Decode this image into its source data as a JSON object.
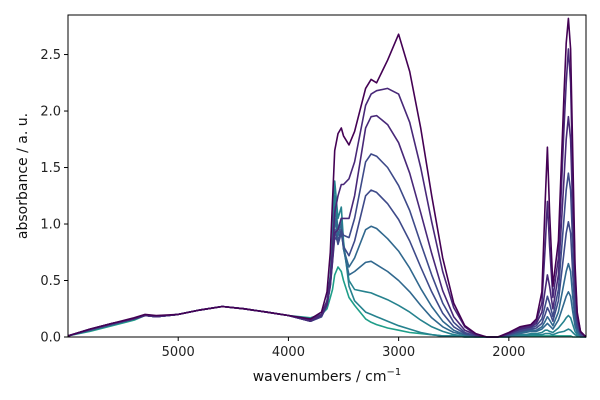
{
  "chart_data": {
    "type": "line",
    "title": "",
    "xlabel": "wavenumbers / cm",
    "xlabel_superscript": "−1",
    "ylabel": "absorbance / a. u.",
    "x_reversed": true,
    "xlim": [
      6000,
      1300
    ],
    "ylim": [
      0.0,
      2.85
    ],
    "xticks": [
      "5000",
      "4000",
      "3000",
      "2000"
    ],
    "yticks": [
      "0.0",
      "0.5",
      "1.0",
      "1.5",
      "2.0",
      "2.5"
    ],
    "grid": false,
    "legend": "none",
    "colormap": [
      "#440154",
      "#482878",
      "#3e4a89",
      "#31688e",
      "#26828e",
      "#1f9e89"
    ],
    "x": [
      6000,
      5800,
      5600,
      5400,
      5300,
      5200,
      5000,
      4800,
      4600,
      4400,
      4200,
      4000,
      3800,
      3700,
      3650,
      3620,
      3600,
      3580,
      3550,
      3520,
      3500,
      3450,
      3400,
      3300,
      3250,
      3200,
      3100,
      3000,
      2900,
      2800,
      2700,
      2600,
      2500,
      2400,
      2300,
      2200,
      2100,
      2000,
      1900,
      1850,
      1800,
      1750,
      1700,
      1670,
      1650,
      1630,
      1600,
      1550,
      1500,
      1480,
      1460,
      1440,
      1420,
      1400,
      1380,
      1350,
      1300
    ],
    "series": [
      {
        "values": [
          0.01,
          0.05,
          0.1,
          0.15,
          0.19,
          0.18,
          0.2,
          0.24,
          0.27,
          0.25,
          0.22,
          0.19,
          0.17,
          0.2,
          0.25,
          0.35,
          0.42,
          0.55,
          0.62,
          0.58,
          0.5,
          0.35,
          0.28,
          0.16,
          0.13,
          0.11,
          0.08,
          0.06,
          0.04,
          0.03,
          0.02,
          0.01,
          0.01,
          0.0,
          0.0,
          0.0,
          0.0,
          0.0,
          0.01,
          0.01,
          0.01,
          0.01,
          0.01,
          0.01,
          0.01,
          0.01,
          0.01,
          0.01,
          0.01,
          0.01,
          0.01,
          0.01,
          0.0,
          0.0,
          0.0,
          0.0,
          0.0
        ]
      },
      {
        "values": [
          0.01,
          0.06,
          0.11,
          0.16,
          0.19,
          0.18,
          0.2,
          0.24,
          0.27,
          0.25,
          0.22,
          0.19,
          0.16,
          0.2,
          0.32,
          0.55,
          0.9,
          1.38,
          1.05,
          1.15,
          0.85,
          0.45,
          0.32,
          0.22,
          0.2,
          0.18,
          0.14,
          0.1,
          0.07,
          0.04,
          0.02,
          0.01,
          0.01,
          0.0,
          0.0,
          0.0,
          0.0,
          0.0,
          0.01,
          0.01,
          0.02,
          0.02,
          0.02,
          0.03,
          0.03,
          0.03,
          0.02,
          0.04,
          0.05,
          0.06,
          0.07,
          0.06,
          0.04,
          0.02,
          0.01,
          0.0,
          0.0
        ]
      },
      {
        "values": [
          0.01,
          0.06,
          0.11,
          0.16,
          0.19,
          0.18,
          0.2,
          0.24,
          0.27,
          0.25,
          0.22,
          0.19,
          0.15,
          0.19,
          0.31,
          0.52,
          0.8,
          1.25,
          0.95,
          1.05,
          0.8,
          0.5,
          0.42,
          0.4,
          0.39,
          0.37,
          0.33,
          0.28,
          0.22,
          0.15,
          0.09,
          0.05,
          0.02,
          0.01,
          0.0,
          0.0,
          0.0,
          0.01,
          0.02,
          0.02,
          0.03,
          0.03,
          0.04,
          0.06,
          0.06,
          0.05,
          0.04,
          0.08,
          0.14,
          0.17,
          0.19,
          0.17,
          0.11,
          0.05,
          0.02,
          0.01,
          0.0
        ]
      },
      {
        "values": [
          0.01,
          0.06,
          0.11,
          0.16,
          0.19,
          0.18,
          0.2,
          0.24,
          0.27,
          0.25,
          0.22,
          0.19,
          0.15,
          0.18,
          0.3,
          0.5,
          0.75,
          1.15,
          0.9,
          1.0,
          0.78,
          0.55,
          0.58,
          0.66,
          0.67,
          0.64,
          0.58,
          0.5,
          0.4,
          0.28,
          0.17,
          0.09,
          0.04,
          0.02,
          0.01,
          0.0,
          0.0,
          0.01,
          0.03,
          0.04,
          0.05,
          0.05,
          0.07,
          0.1,
          0.12,
          0.1,
          0.07,
          0.15,
          0.3,
          0.36,
          0.4,
          0.36,
          0.22,
          0.1,
          0.04,
          0.01,
          0.0
        ]
      },
      {
        "values": [
          0.01,
          0.06,
          0.11,
          0.16,
          0.19,
          0.18,
          0.2,
          0.24,
          0.27,
          0.25,
          0.22,
          0.19,
          0.14,
          0.18,
          0.29,
          0.48,
          0.7,
          1.05,
          0.85,
          0.95,
          0.78,
          0.62,
          0.7,
          0.95,
          0.98,
          0.96,
          0.87,
          0.76,
          0.61,
          0.43,
          0.27,
          0.14,
          0.06,
          0.02,
          0.01,
          0.0,
          0.0,
          0.02,
          0.04,
          0.05,
          0.06,
          0.06,
          0.09,
          0.14,
          0.18,
          0.15,
          0.1,
          0.22,
          0.48,
          0.58,
          0.65,
          0.58,
          0.35,
          0.15,
          0.06,
          0.02,
          0.0
        ]
      },
      {
        "values": [
          0.01,
          0.06,
          0.11,
          0.16,
          0.19,
          0.18,
          0.2,
          0.24,
          0.27,
          0.25,
          0.22,
          0.19,
          0.14,
          0.18,
          0.28,
          0.46,
          0.68,
          0.95,
          0.82,
          0.92,
          0.8,
          0.72,
          0.85,
          1.25,
          1.3,
          1.28,
          1.18,
          1.04,
          0.85,
          0.62,
          0.4,
          0.21,
          0.09,
          0.03,
          0.01,
          0.0,
          0.0,
          0.02,
          0.05,
          0.06,
          0.07,
          0.08,
          0.12,
          0.2,
          0.26,
          0.22,
          0.14,
          0.32,
          0.75,
          0.92,
          1.02,
          0.92,
          0.55,
          0.23,
          0.09,
          0.02,
          0.0
        ]
      },
      {
        "values": [
          0.01,
          0.07,
          0.12,
          0.16,
          0.19,
          0.18,
          0.2,
          0.24,
          0.27,
          0.25,
          0.22,
          0.19,
          0.14,
          0.18,
          0.28,
          0.45,
          0.66,
          0.88,
          0.85,
          0.95,
          0.9,
          0.88,
          1.05,
          1.55,
          1.62,
          1.6,
          1.5,
          1.34,
          1.12,
          0.83,
          0.55,
          0.3,
          0.13,
          0.04,
          0.01,
          0.0,
          0.0,
          0.02,
          0.06,
          0.07,
          0.08,
          0.1,
          0.16,
          0.28,
          0.36,
          0.3,
          0.18,
          0.42,
          1.05,
          1.3,
          1.45,
          1.3,
          0.8,
          0.33,
          0.12,
          0.03,
          0.0
        ]
      },
      {
        "values": [
          0.01,
          0.07,
          0.12,
          0.16,
          0.19,
          0.18,
          0.2,
          0.24,
          0.27,
          0.25,
          0.22,
          0.19,
          0.14,
          0.19,
          0.29,
          0.46,
          0.68,
          0.92,
          0.95,
          1.05,
          1.05,
          1.05,
          1.25,
          1.85,
          1.95,
          1.96,
          1.88,
          1.72,
          1.45,
          1.1,
          0.74,
          0.41,
          0.18,
          0.06,
          0.02,
          0.0,
          0.0,
          0.03,
          0.07,
          0.08,
          0.09,
          0.12,
          0.22,
          0.42,
          0.55,
          0.45,
          0.25,
          0.55,
          1.4,
          1.75,
          1.95,
          1.75,
          1.1,
          0.45,
          0.16,
          0.04,
          0.0
        ]
      },
      {
        "values": [
          0.01,
          0.07,
          0.12,
          0.16,
          0.19,
          0.18,
          0.2,
          0.24,
          0.27,
          0.25,
          0.22,
          0.19,
          0.15,
          0.2,
          0.32,
          0.52,
          0.78,
          1.1,
          1.25,
          1.35,
          1.35,
          1.4,
          1.55,
          2.05,
          2.15,
          2.18,
          2.2,
          2.15,
          1.9,
          1.5,
          1.02,
          0.58,
          0.26,
          0.09,
          0.02,
          0.0,
          0.0,
          0.03,
          0.08,
          0.09,
          0.1,
          0.14,
          0.3,
          0.8,
          1.2,
          0.8,
          0.35,
          0.7,
          1.85,
          2.25,
          2.55,
          2.25,
          1.4,
          0.58,
          0.2,
          0.05,
          0.0
        ]
      },
      {
        "values": [
          0.01,
          0.07,
          0.12,
          0.17,
          0.2,
          0.19,
          0.2,
          0.24,
          0.27,
          0.25,
          0.22,
          0.19,
          0.16,
          0.22,
          0.4,
          0.75,
          1.2,
          1.65,
          1.8,
          1.85,
          1.78,
          1.7,
          1.82,
          2.2,
          2.28,
          2.25,
          2.45,
          2.68,
          2.35,
          1.85,
          1.25,
          0.7,
          0.3,
          0.1,
          0.03,
          0.0,
          0.0,
          0.04,
          0.09,
          0.1,
          0.11,
          0.16,
          0.4,
          1.2,
          1.68,
          1.1,
          0.45,
          0.85,
          2.15,
          2.6,
          2.82,
          2.55,
          1.6,
          0.65,
          0.22,
          0.05,
          0.0
        ]
      }
    ]
  }
}
